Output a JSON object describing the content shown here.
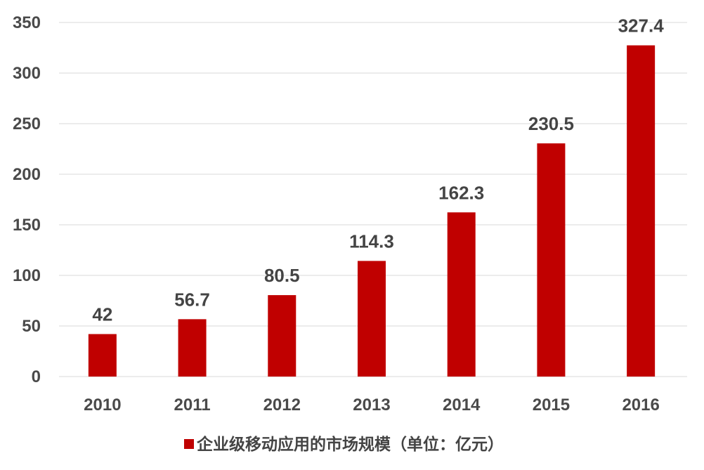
{
  "chart_data": {
    "type": "bar",
    "categories": [
      "2010",
      "2011",
      "2012",
      "2013",
      "2014",
      "2015",
      "2016"
    ],
    "series": [
      {
        "name": "企业级移动应用的市场规模（单位：亿元）",
        "values": [
          42,
          56.7,
          80.5,
          114.3,
          162.3,
          230.5,
          327.4
        ],
        "labels": [
          "42",
          "56.7",
          "80.5",
          "114.3",
          "162.3",
          "230.5",
          "327.4"
        ],
        "color": "#c00000"
      }
    ],
    "ylim": [
      0,
      350
    ],
    "yticks": [
      0,
      50,
      100,
      150,
      200,
      250,
      300,
      350
    ],
    "grid": true,
    "legend": "bottom",
    "colors": {
      "bar": "#c00000",
      "grid": "#d9d9d9",
      "text": "#444444"
    }
  }
}
